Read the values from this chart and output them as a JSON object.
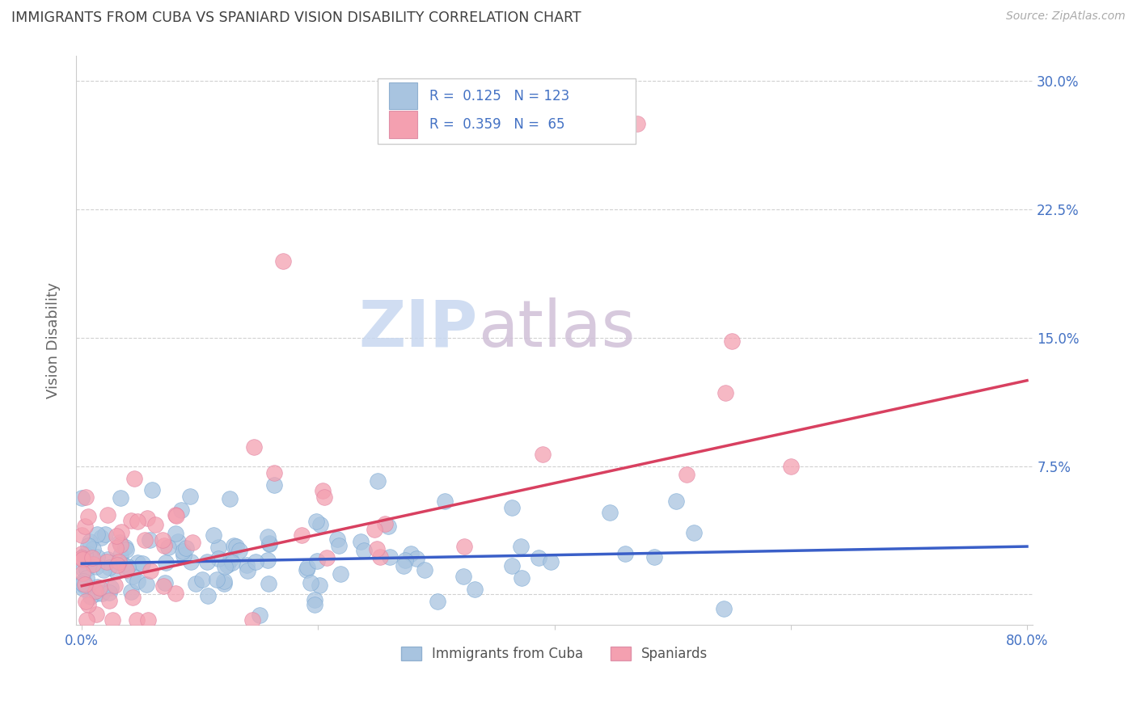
{
  "title": "IMMIGRANTS FROM CUBA VS SPANIARD VISION DISABILITY CORRELATION CHART",
  "source": "Source: ZipAtlas.com",
  "ylabel": "Vision Disability",
  "legend_labels": [
    "Immigrants from Cuba",
    "Spaniards"
  ],
  "legend_R": [
    0.125,
    0.359
  ],
  "legend_N": [
    123,
    65
  ],
  "cuba_color": "#a8c4e0",
  "spain_color": "#f4a0b0",
  "cuba_line_color": "#3a5fc8",
  "spain_line_color": "#d84060",
  "title_color": "#404040",
  "axis_label_color": "#4472c4",
  "xmin": 0.0,
  "xmax": 0.8,
  "ymin": -0.018,
  "ymax": 0.315,
  "x_ticks": [
    0.0,
    0.2,
    0.4,
    0.6,
    0.8
  ],
  "x_tick_labels": [
    "0.0%",
    "",
    "",
    "",
    "80.0%"
  ],
  "y_ticks": [
    0.0,
    0.075,
    0.15,
    0.225,
    0.3
  ],
  "y_tick_labels_right": [
    "",
    "7.5%",
    "15.0%",
    "22.5%",
    "30.0%"
  ],
  "watermark_zip": "ZIP",
  "watermark_atlas": "atlas",
  "cuba_seed": 42,
  "spain_seed": 7,
  "cuba_R": 0.125,
  "spain_R": 0.359,
  "cuba_N": 123,
  "spain_N": 65,
  "cuba_line_y0": 0.018,
  "cuba_line_y1": 0.028,
  "spain_line_y0": 0.005,
  "spain_line_y1": 0.125
}
